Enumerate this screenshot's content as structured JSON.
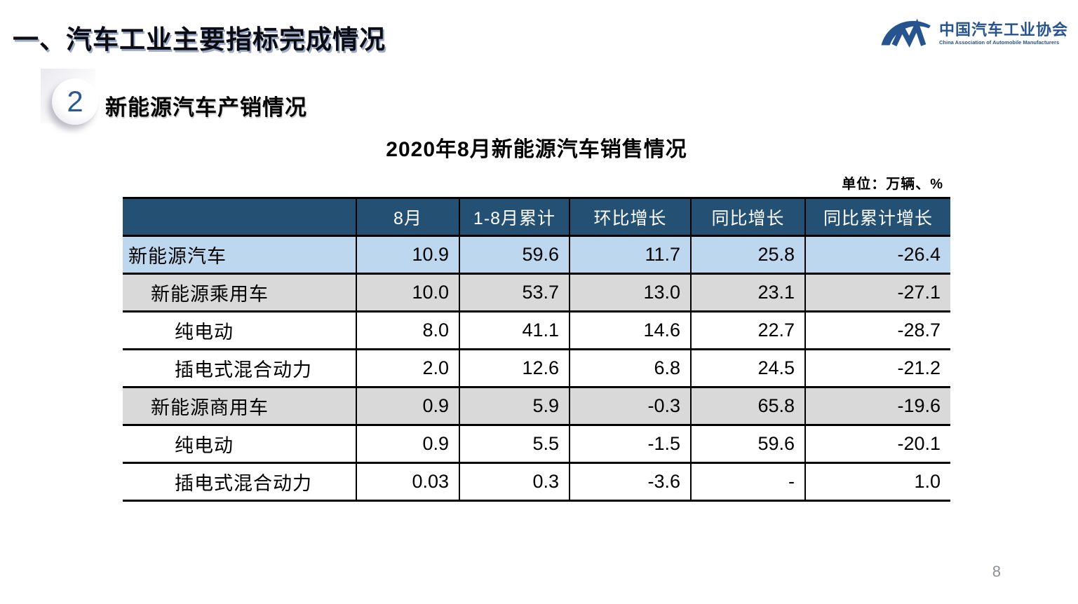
{
  "page": {
    "title": "一、汽车工业主要指标完成情况",
    "page_number": "8"
  },
  "logo": {
    "name_cn": "中国汽车工业协会",
    "name_en": "China Association of Automobile Manufacturers",
    "color": "#27548E"
  },
  "section": {
    "number": "2",
    "heading": "新能源汽车产销情况"
  },
  "table": {
    "title": "2020年8月新能源汽车销售情况",
    "unit_label": "单位：万辆、%",
    "header_bg": "#245173",
    "header_text_color": "#FFFFFF",
    "columns": [
      "",
      "8月",
      "1-8月累计",
      "环比增长",
      "同比增长",
      "同比累计增长"
    ],
    "rows": [
      {
        "label": "新能源汽车",
        "indent": 1,
        "bg": "#BDD7EE",
        "values": [
          "10.9",
          "59.6",
          "11.7",
          "25.8",
          "-26.4"
        ]
      },
      {
        "label": "新能源乘用车",
        "indent": 2,
        "bg": "#D9D9D9",
        "values": [
          "10.0",
          "53.7",
          "13.0",
          "23.1",
          "-27.1"
        ]
      },
      {
        "label": "纯电动",
        "indent": 3,
        "bg": "#FFFFFF",
        "values": [
          "8.0",
          "41.1",
          "14.6",
          "22.7",
          "-28.7"
        ]
      },
      {
        "label": "插电式混合动力",
        "indent": 3,
        "bg": "#FFFFFF",
        "values": [
          "2.0",
          "12.6",
          "6.8",
          "24.5",
          "-21.2"
        ]
      },
      {
        "label": "新能源商用车",
        "indent": 2,
        "bg": "#D9D9D9",
        "values": [
          "0.9",
          "5.9",
          "-0.3",
          "65.8",
          "-19.6"
        ]
      },
      {
        "label": "纯电动",
        "indent": 3,
        "bg": "#FFFFFF",
        "values": [
          "0.9",
          "5.5",
          "-1.5",
          "59.6",
          "-20.1"
        ]
      },
      {
        "label": "插电式混合动力",
        "indent": 3,
        "bg": "#FFFFFF",
        "values": [
          "0.03",
          "0.3",
          "-3.6",
          "-",
          "1.0"
        ]
      }
    ]
  },
  "chart_data": {
    "type": "table",
    "title": "2020年8月新能源汽车销售情况",
    "unit": "单位：万辆、%",
    "columns": [
      "8月",
      "1-8月累计",
      "环比增长",
      "同比增长",
      "同比累计增长"
    ],
    "categories": [
      "新能源汽车",
      "新能源乘用车",
      "纯电动(乘用车)",
      "插电式混合动力(乘用车)",
      "新能源商用车",
      "纯电动(商用车)",
      "插电式混合动力(商用车)"
    ],
    "values": [
      [
        10.9,
        59.6,
        11.7,
        25.8,
        -26.4
      ],
      [
        10.0,
        53.7,
        13.0,
        23.1,
        -27.1
      ],
      [
        8.0,
        41.1,
        14.6,
        22.7,
        -28.7
      ],
      [
        2.0,
        12.6,
        6.8,
        24.5,
        -21.2
      ],
      [
        0.9,
        5.9,
        -0.3,
        65.8,
        -19.6
      ],
      [
        0.9,
        5.5,
        -1.5,
        59.6,
        -20.1
      ],
      [
        0.03,
        0.3,
        -3.6,
        null,
        1.0
      ]
    ]
  }
}
